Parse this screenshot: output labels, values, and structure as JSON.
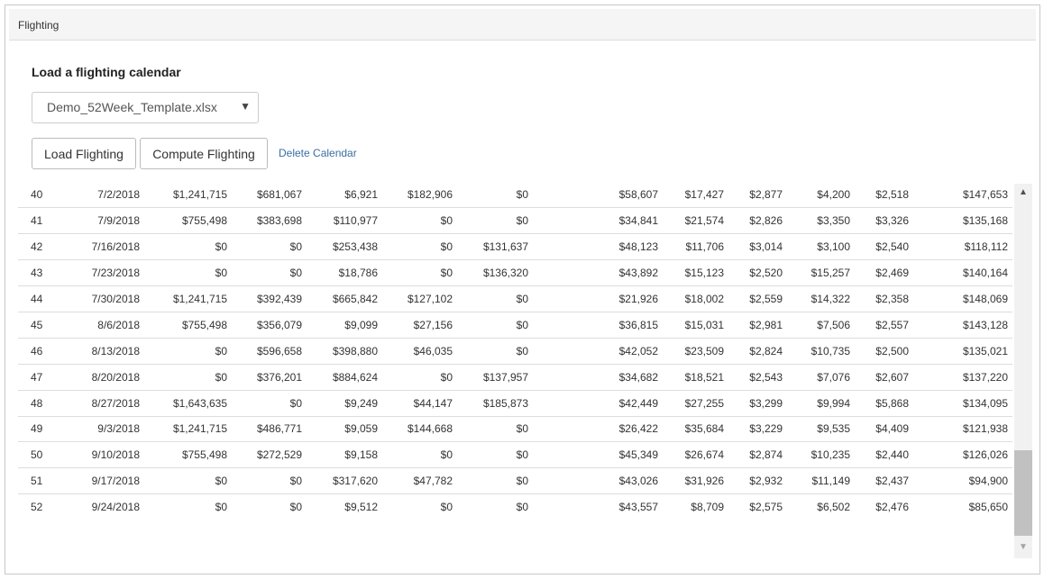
{
  "panel": {
    "title": "Flighting"
  },
  "calendar": {
    "section_title": "Load a flighting calendar",
    "selected_file": "Demo_52Week_Template.xlsx",
    "caret_icon": "caret-down-icon"
  },
  "actions": {
    "load_label": "Load Flighting",
    "compute_label": "Compute Flighting",
    "delete_label": "Delete Calendar"
  },
  "table": {
    "rows": [
      [
        "40",
        "7/2/2018",
        "$1,241,715",
        "$681,067",
        "$6,921",
        "$182,906",
        "$0",
        "$58,607",
        "$17,427",
        "$2,877",
        "$4,200",
        "$2,518",
        "$147,653"
      ],
      [
        "41",
        "7/9/2018",
        "$755,498",
        "$383,698",
        "$110,977",
        "$0",
        "$0",
        "$34,841",
        "$21,574",
        "$2,826",
        "$3,350",
        "$3,326",
        "$135,168"
      ],
      [
        "42",
        "7/16/2018",
        "$0",
        "$0",
        "$253,438",
        "$0",
        "$131,637",
        "$48,123",
        "$11,706",
        "$3,014",
        "$3,100",
        "$2,540",
        "$118,112"
      ],
      [
        "43",
        "7/23/2018",
        "$0",
        "$0",
        "$18,786",
        "$0",
        "$136,320",
        "$43,892",
        "$15,123",
        "$2,520",
        "$15,257",
        "$2,469",
        "$140,164"
      ],
      [
        "44",
        "7/30/2018",
        "$1,241,715",
        "$392,439",
        "$665,842",
        "$127,102",
        "$0",
        "$21,926",
        "$18,002",
        "$2,559",
        "$14,322",
        "$2,358",
        "$148,069"
      ],
      [
        "45",
        "8/6/2018",
        "$755,498",
        "$356,079",
        "$9,099",
        "$27,156",
        "$0",
        "$36,815",
        "$15,031",
        "$2,981",
        "$7,506",
        "$2,557",
        "$143,128"
      ],
      [
        "46",
        "8/13/2018",
        "$0",
        "$596,658",
        "$398,880",
        "$46,035",
        "$0",
        "$42,052",
        "$23,509",
        "$2,824",
        "$10,735",
        "$2,500",
        "$135,021"
      ],
      [
        "47",
        "8/20/2018",
        "$0",
        "$376,201",
        "$884,624",
        "$0",
        "$137,957",
        "$34,682",
        "$18,521",
        "$2,543",
        "$7,076",
        "$2,607",
        "$137,220"
      ],
      [
        "48",
        "8/27/2018",
        "$1,643,635",
        "$0",
        "$9,249",
        "$44,147",
        "$185,873",
        "$42,449",
        "$27,255",
        "$3,299",
        "$9,994",
        "$5,868",
        "$134,095"
      ],
      [
        "49",
        "9/3/2018",
        "$1,241,715",
        "$486,771",
        "$9,059",
        "$144,668",
        "$0",
        "$26,422",
        "$35,684",
        "$3,229",
        "$9,535",
        "$4,409",
        "$121,938"
      ],
      [
        "50",
        "9/10/2018",
        "$755,498",
        "$272,529",
        "$9,158",
        "$0",
        "$0",
        "$45,349",
        "$26,674",
        "$2,874",
        "$10,235",
        "$2,440",
        "$126,026"
      ],
      [
        "51",
        "9/17/2018",
        "$0",
        "$0",
        "$317,620",
        "$47,782",
        "$0",
        "$43,026",
        "$31,926",
        "$2,932",
        "$11,149",
        "$2,437",
        "$94,900"
      ],
      [
        "52",
        "9/24/2018",
        "$0",
        "$0",
        "$9,512",
        "$0",
        "$0",
        "$43,557",
        "$8,709",
        "$2,575",
        "$6,502",
        "$2,476",
        "$85,650"
      ]
    ]
  },
  "scrollbar": {
    "up_icon": "arrow-up-icon",
    "down_icon": "arrow-down-icon"
  }
}
